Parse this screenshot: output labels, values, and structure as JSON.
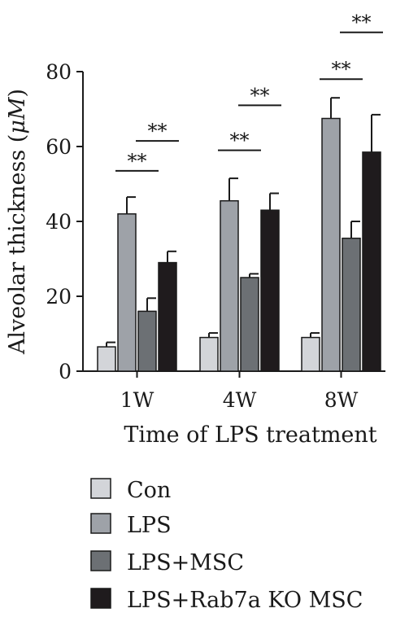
{
  "chart_data": {
    "type": "bar",
    "xlabel": "Time of LPS treatment",
    "ylabel": "Alveolar thickness (",
    "ylabel_unit": "μM",
    "ylabel_close": ")",
    "ylim": [
      0,
      80
    ],
    "yticks": [
      "0",
      "20",
      "40",
      "60",
      "80"
    ],
    "categories": [
      "1W",
      "4W",
      "8W"
    ],
    "legend_position": "bottom",
    "series": [
      {
        "name": "Con",
        "color": "#d3d5d9",
        "values": [
          6.5,
          9,
          9
        ],
        "errors": [
          1.2,
          1.2,
          1.2
        ]
      },
      {
        "name": "LPS",
        "color": "#9ea2a8",
        "values": [
          42,
          45.5,
          67.5
        ],
        "errors": [
          4.5,
          6,
          5.5
        ]
      },
      {
        "name": "LPS+MSC",
        "color": "#6c7074",
        "values": [
          16,
          25,
          35.5
        ],
        "errors": [
          3.5,
          1,
          4.5
        ]
      },
      {
        "name": "LPS+Rab7a KO MSC",
        "color": "#1f1b1d",
        "values": [
          29,
          43,
          58.5
        ],
        "errors": [
          3,
          4.5,
          10
        ]
      }
    ],
    "significance": [
      {
        "category": 0,
        "from_series": 1,
        "to_series": 2,
        "level": 53.5,
        "label": "**"
      },
      {
        "category": 0,
        "from_series": 2,
        "to_series": 3,
        "level": 61.5,
        "label": "**"
      },
      {
        "category": 1,
        "from_series": 1,
        "to_series": 2,
        "level": 59,
        "label": "**"
      },
      {
        "category": 1,
        "from_series": 2,
        "to_series": 3,
        "level": 71,
        "label": "**"
      },
      {
        "category": 2,
        "from_series": 1,
        "to_series": 2,
        "level": 78,
        "label": "**"
      },
      {
        "category": 2,
        "from_series": 2,
        "to_series": 3,
        "level": 90.5,
        "label": "**"
      }
    ]
  }
}
